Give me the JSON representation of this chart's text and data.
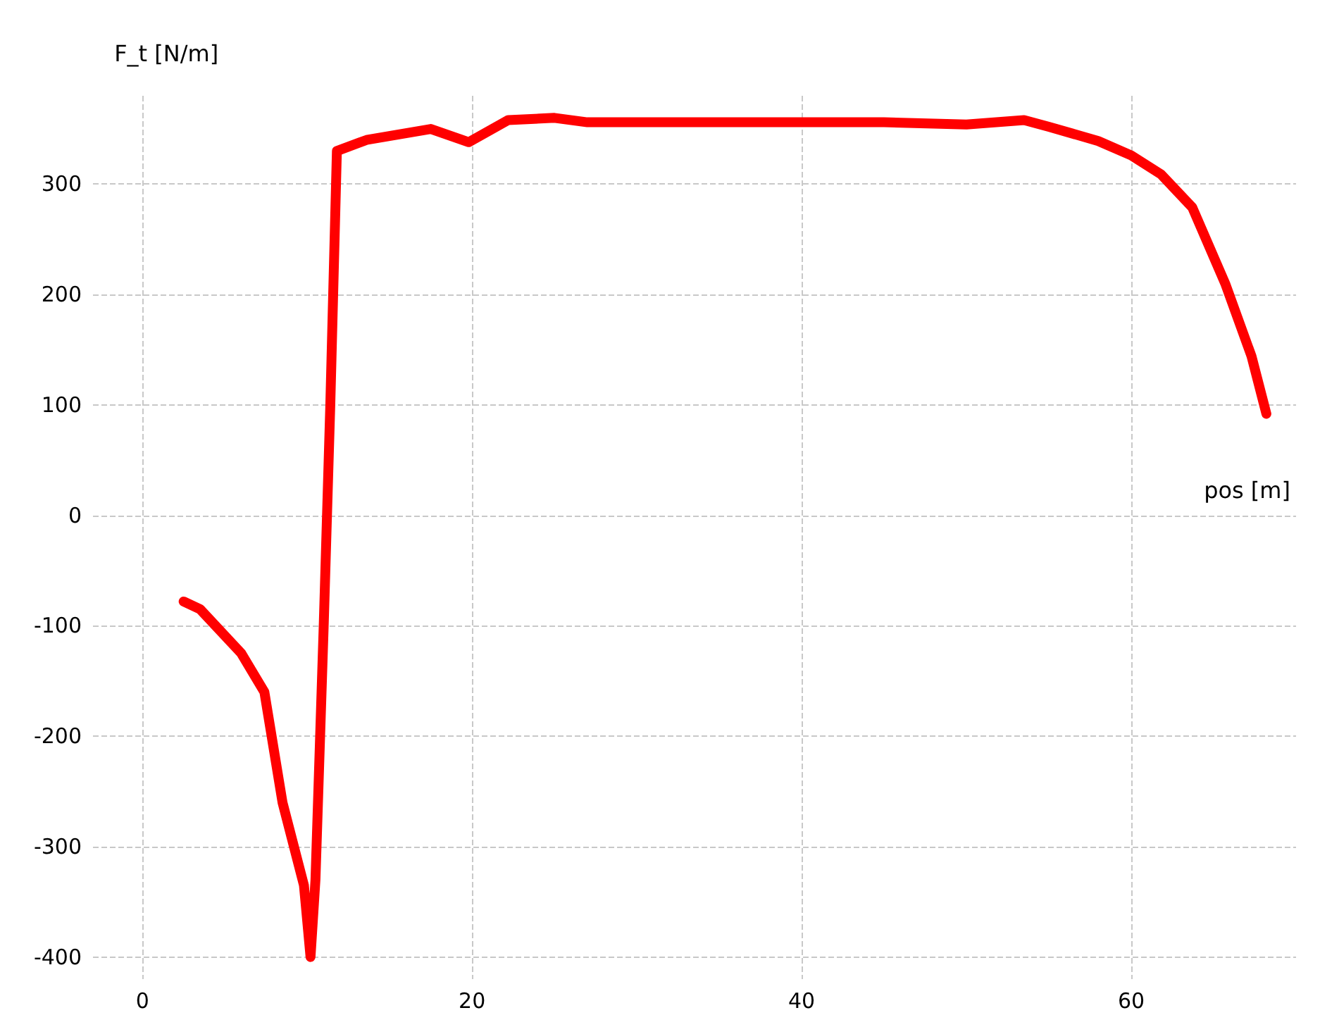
{
  "chart_data": {
    "type": "line",
    "xlabel": "pos [m]",
    "ylabel": "F_t [N/m]",
    "xlim": [
      -3,
      70
    ],
    "xticks": [
      0,
      20,
      40,
      60
    ],
    "ylim": [
      -420,
      380
    ],
    "yticks": [
      -400,
      -300,
      -200,
      -100,
      0,
      100,
      200,
      300
    ],
    "grid": true,
    "line_style": "solid",
    "x": [
      2.5,
      3.5,
      6,
      7.4,
      8.5,
      9.8,
      10.2,
      10.5,
      11,
      11.4,
      11.8,
      13.6,
      17.5,
      19.8,
      22.2,
      25,
      27,
      40,
      45,
      50,
      53.5,
      55,
      58,
      60,
      61.8,
      63.7,
      65.7,
      67.3,
      68.2
    ],
    "series": [
      {
        "color": "#ff0000",
        "values": [
          -78,
          -85,
          -125,
          -160,
          -260,
          -335,
          -400,
          -330,
          -100,
          100,
          330,
          340,
          350,
          338,
          358,
          360,
          356,
          356,
          356,
          354,
          358,
          352,
          339,
          326,
          309,
          279,
          210,
          144,
          92
        ]
      }
    ]
  }
}
